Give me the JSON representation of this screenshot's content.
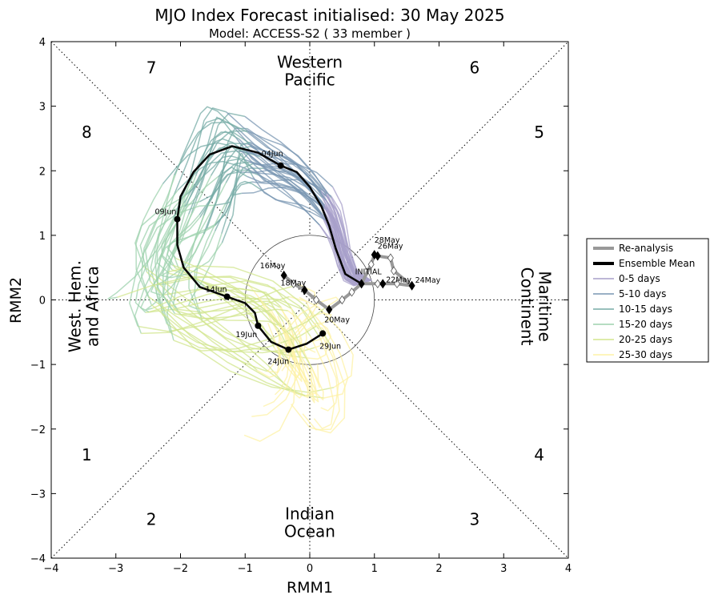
{
  "chart_data": {
    "type": "line",
    "title": "MJO Index Forecast initialised:  30  May 2025",
    "subtitle": "Model: ACCESS-S2 ( 33 member )",
    "xlabel": "RMM1",
    "ylabel": "RMM2",
    "xlim": [
      -4,
      4
    ],
    "ylim": [
      -4,
      4
    ],
    "xticks": [
      "−4",
      "−3",
      "−2",
      "−1",
      "0",
      "1",
      "2",
      "3",
      "4"
    ],
    "yticks": [
      "−4",
      "−3",
      "−2",
      "−1",
      "0",
      "1",
      "2",
      "3",
      "4"
    ],
    "phases": [
      {
        "label": "1",
        "x": -3.45,
        "y": -2.4
      },
      {
        "label": "2",
        "x": -2.45,
        "y": -3.4
      },
      {
        "label": "3",
        "x": 2.55,
        "y": -3.4
      },
      {
        "label": "4",
        "x": 3.55,
        "y": -2.4
      },
      {
        "label": "5",
        "x": 3.55,
        "y": 2.6
      },
      {
        "label": "6",
        "x": 2.55,
        "y": 3.6
      },
      {
        "label": "7",
        "x": -2.45,
        "y": 3.6
      },
      {
        "label": "8",
        "x": -3.45,
        "y": 2.6
      }
    ],
    "regions": [
      {
        "lines": [
          "Western",
          "Pacific"
        ],
        "x": 0,
        "y": 3.55,
        "rotate": 0
      },
      {
        "lines": [
          "Indian",
          "Ocean"
        ],
        "x": 0,
        "y": -3.45,
        "rotate": 0
      },
      {
        "lines": [
          "West. Hem.",
          "and Africa"
        ],
        "x": -3.5,
        "y": -0.1,
        "rotate": -90
      },
      {
        "lines": [
          "Maritime",
          "Continent"
        ],
        "x": 3.5,
        "y": -0.1,
        "rotate": 90
      }
    ],
    "legend": {
      "placement": "outside-right",
      "entries": [
        {
          "label": "Re-analysis",
          "color": "#999999",
          "width": 4
        },
        {
          "label": "Ensemble Mean",
          "color": "#000000",
          "width": 4
        },
        {
          "label": "0-5 days",
          "color": "#a79fc9",
          "width": 1.5
        },
        {
          "label": "5-10 days",
          "color": "#7896b2",
          "width": 1.5
        },
        {
          "label": "10-15 days",
          "color": "#76aba6",
          "width": 1.5
        },
        {
          "label": "15-20 days",
          "color": "#9ed2ae",
          "width": 1.5
        },
        {
          "label": "20-25 days",
          "color": "#d2e68e",
          "width": 1.5
        },
        {
          "label": "25-30 days",
          "color": "#fdf2a6",
          "width": 1.5
        }
      ]
    },
    "reanalysis": {
      "points": [
        {
          "x": 1.58,
          "y": 0.22,
          "label": "24May"
        },
        {
          "x": 1.13,
          "y": 0.25,
          "label": "22May"
        },
        {
          "x": 1.05,
          "y": 0.68,
          "label": "26May"
        },
        {
          "x": 1.0,
          "y": 0.7,
          "label": "28May"
        },
        {
          "x": 0.8,
          "y": 0.25,
          "label": "INITIAL"
        },
        {
          "x": 0.3,
          "y": -0.15,
          "label": "20May"
        },
        {
          "x": -0.08,
          "y": 0.15,
          "label": "18May"
        },
        {
          "x": -0.4,
          "y": 0.38,
          "label": "16May"
        }
      ],
      "path": [
        [
          -0.4,
          0.38
        ],
        [
          -0.25,
          0.25
        ],
        [
          -0.08,
          0.15
        ],
        [
          0.1,
          0.0
        ],
        [
          0.3,
          -0.15
        ],
        [
          0.5,
          0.0
        ],
        [
          0.65,
          0.12
        ],
        [
          0.8,
          0.25
        ],
        [
          1.05,
          0.25
        ],
        [
          1.13,
          0.25
        ],
        [
          1.35,
          0.25
        ],
        [
          1.58,
          0.22
        ],
        [
          1.3,
          0.45
        ],
        [
          1.25,
          0.65
        ],
        [
          1.05,
          0.68
        ],
        [
          1.0,
          0.7
        ],
        [
          0.95,
          0.55
        ],
        [
          0.8,
          0.25
        ]
      ]
    },
    "ensemble_mean": {
      "points": [
        {
          "x": -0.45,
          "y": 2.08,
          "label": "04Jun"
        },
        {
          "x": -2.05,
          "y": 1.25,
          "label": "09Jun"
        },
        {
          "x": -1.28,
          "y": 0.05,
          "label": "14Jun"
        },
        {
          "x": -0.8,
          "y": -0.4,
          "label": "19Jun"
        },
        {
          "x": -0.33,
          "y": -0.77,
          "label": "24Jun"
        },
        {
          "x": 0.2,
          "y": -0.52,
          "label": "29Jun"
        }
      ],
      "path": [
        [
          0.8,
          0.25
        ],
        [
          0.55,
          0.4
        ],
        [
          0.4,
          0.8
        ],
        [
          0.3,
          1.15
        ],
        [
          0.18,
          1.45
        ],
        [
          0.0,
          1.75
        ],
        [
          -0.2,
          1.98
        ],
        [
          -0.45,
          2.08
        ],
        [
          -0.8,
          2.28
        ],
        [
          -1.2,
          2.38
        ],
        [
          -1.55,
          2.25
        ],
        [
          -1.8,
          1.98
        ],
        [
          -2.0,
          1.6
        ],
        [
          -2.05,
          1.25
        ],
        [
          -2.05,
          0.85
        ],
        [
          -1.95,
          0.5
        ],
        [
          -1.7,
          0.2
        ],
        [
          -1.28,
          0.05
        ],
        [
          -1.0,
          -0.05
        ],
        [
          -0.85,
          -0.2
        ],
        [
          -0.8,
          -0.4
        ],
        [
          -0.6,
          -0.65
        ],
        [
          -0.33,
          -0.77
        ],
        [
          -0.05,
          -0.68
        ],
        [
          0.2,
          -0.52
        ]
      ]
    }
  }
}
